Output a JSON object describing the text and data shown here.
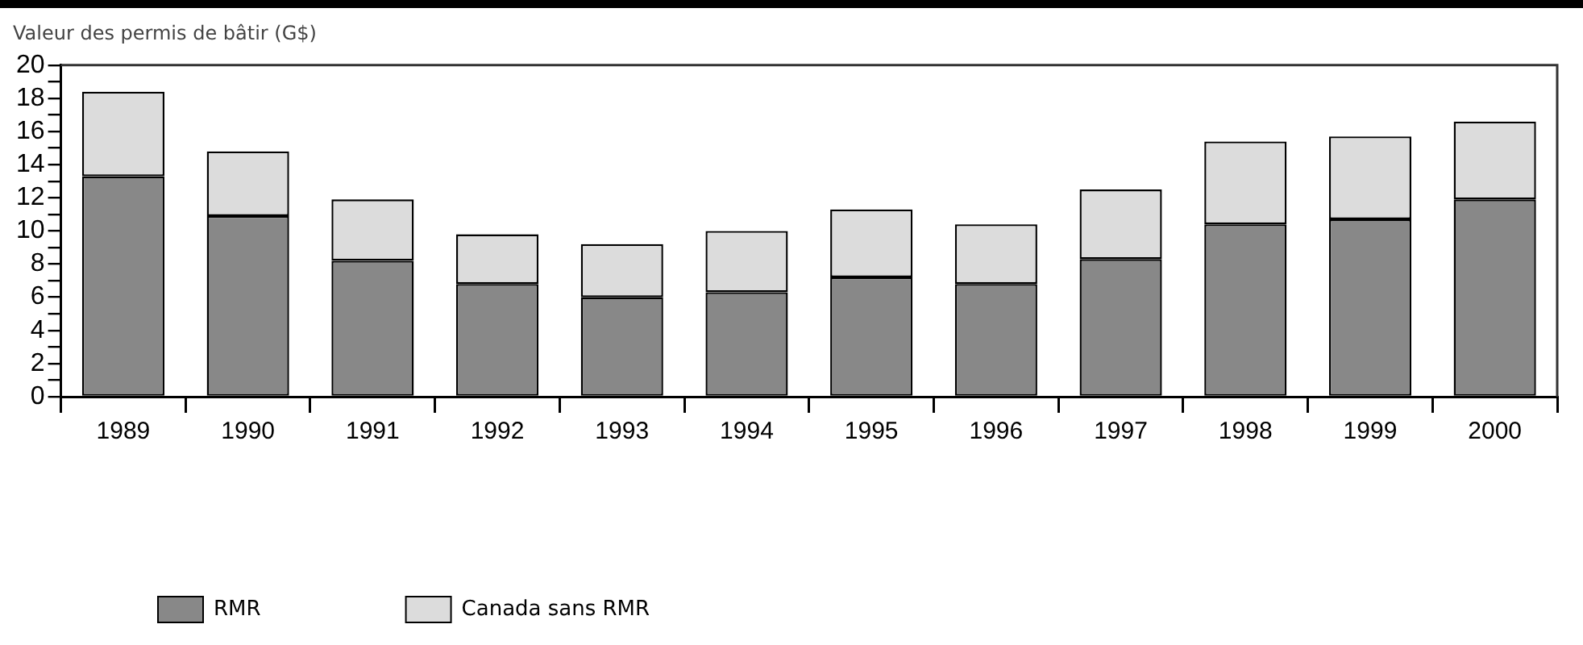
{
  "chart_data": {
    "type": "bar",
    "stacked": true,
    "ylabel": "Valeur des permis de bâtir (G$)",
    "categories": [
      "1989",
      "1990",
      "1991",
      "1992",
      "1993",
      "1994",
      "1995",
      "1996",
      "1997",
      "1998",
      "1999",
      "2000"
    ],
    "series": [
      {
        "name": "RMR",
        "color": "#888888",
        "values": [
          13.3,
          10.9,
          8.2,
          6.8,
          6.0,
          6.3,
          7.2,
          6.8,
          8.3,
          10.4,
          10.7,
          11.9
        ]
      },
      {
        "name": "Canada sans RMR",
        "color": "#dcdcdc",
        "values": [
          5.1,
          3.9,
          3.7,
          3.0,
          3.2,
          3.7,
          4.1,
          3.6,
          4.2,
          5.0,
          5.0,
          4.7
        ]
      }
    ],
    "ylim": [
      0,
      20
    ],
    "yticks": [
      0,
      {
        "value": 1,
        "label": null
      },
      2,
      {
        "value": 3,
        "label": null
      },
      4,
      {
        "value": 5,
        "label": null
      },
      6,
      {
        "value": 7,
        "label": null
      },
      8,
      {
        "value": 9,
        "label": null
      },
      10,
      {
        "value": 11,
        "label": null
      },
      12,
      {
        "value": 13,
        "label": null
      },
      14,
      {
        "value": 15,
        "label": null
      },
      16,
      {
        "value": 17,
        "label": null
      },
      18,
      {
        "value": 19,
        "label": null
      },
      20
    ],
    "grid": false,
    "legend": "bottom left"
  }
}
